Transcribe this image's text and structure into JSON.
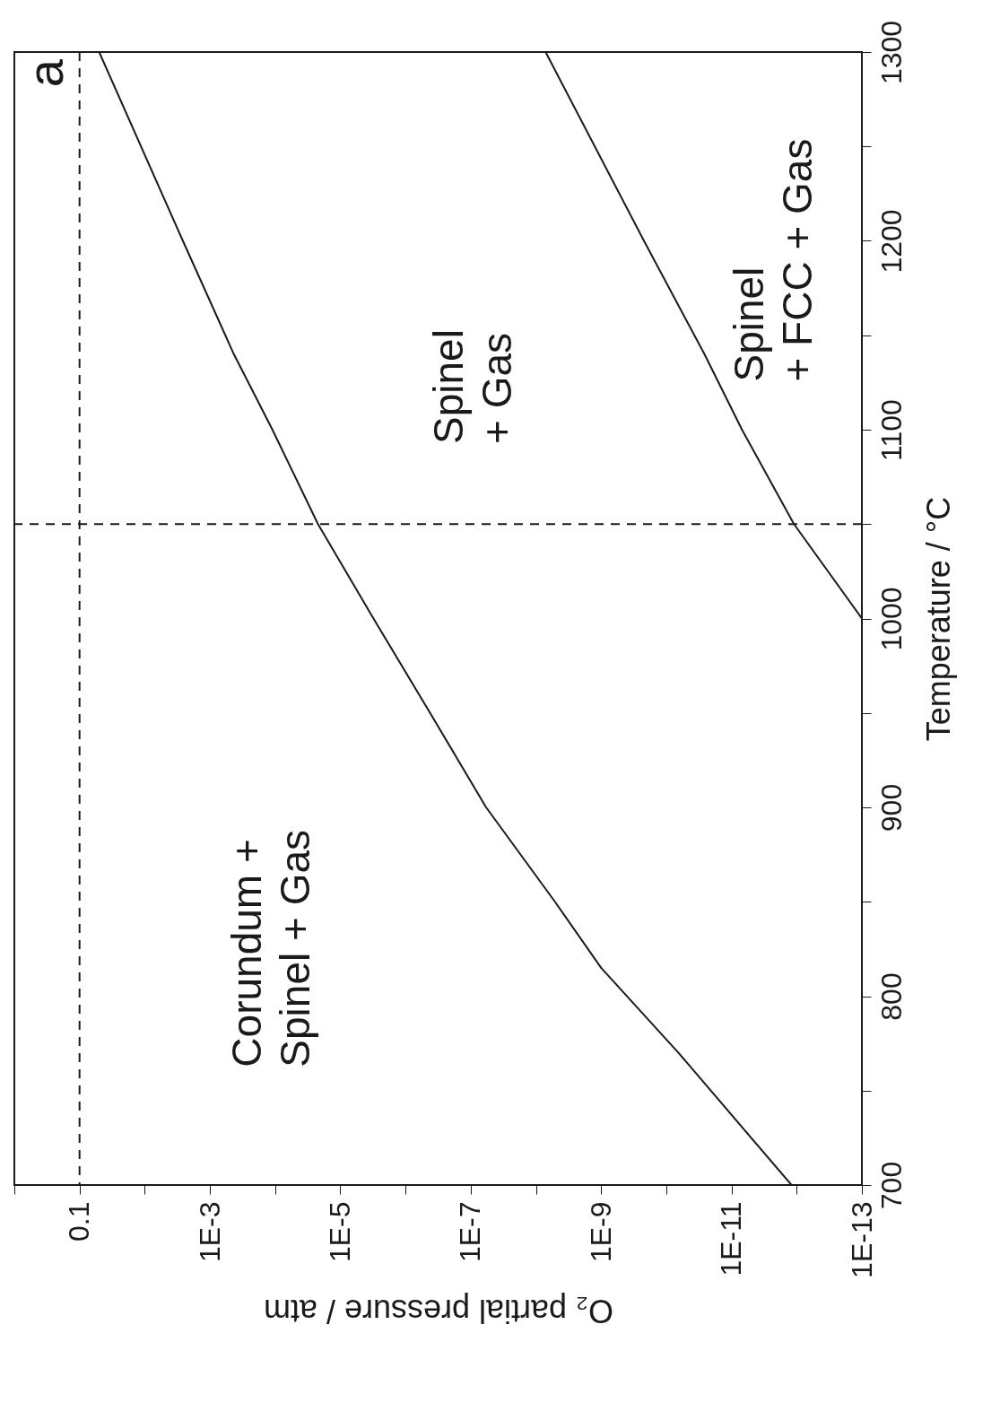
{
  "chart_data": {
    "type": "line",
    "xlabel": "O₂ partial pressure / atm",
    "ylabel": "Temperature / °C",
    "log": "x",
    "grid": false,
    "marker": "none",
    "line_style": "solid",
    "xlim": [
      1,
      1e-13
    ],
    "ylim": [
      700,
      1300
    ],
    "xticks": [
      {
        "value": 1,
        "label": null
      },
      0.1,
      {
        "value": 0.01,
        "label": null
      },
      {
        "value": 0.001,
        "label": "1E-3"
      },
      {
        "value": 0.0001,
        "label": null
      },
      {
        "value": 1e-05,
        "label": "1E-5"
      },
      {
        "value": 1e-06,
        "label": null
      },
      {
        "value": 1e-07,
        "label": "1E-7"
      },
      {
        "value": 1e-08,
        "label": null
      },
      {
        "value": 1e-09,
        "label": "1E-9"
      },
      {
        "value": 1e-10,
        "label": null
      },
      {
        "value": 1e-11,
        "label": "1E-11"
      },
      {
        "value": 1e-12,
        "label": null
      },
      {
        "value": 1e-13,
        "label": "1E-13"
      }
    ],
    "yticks": [
      700,
      {
        "value": 750,
        "label": null
      },
      800,
      {
        "value": 850,
        "label": null
      },
      900,
      {
        "value": 950,
        "label": null
      },
      1000,
      {
        "value": 1050,
        "label": null
      },
      1100,
      {
        "value": 1150,
        "label": null
      },
      1200,
      {
        "value": 1250,
        "label": null
      },
      1300
    ],
    "series": [
      {
        "color": "#1a1a1a",
        "x": [
          1.2e-12,
          6.5e-11,
          1e-09,
          5.1e-09,
          5.8e-08,
          4.2e-07,
          3.1e-06,
          2.2e-05,
          0.00011,
          0.00043,
          0.0026,
          0.05
        ],
        "values": [
          700,
          770,
          815,
          850,
          900,
          950,
          1000,
          1050,
          1100,
          1140,
          1200,
          1300
        ]
      },
      {
        "color": "#1a1a1a",
        "x": [
          1e-13,
          1.1e-12,
          6.9e-12,
          2.6e-11,
          2.2e-10,
          7.1e-09
        ],
        "values": [
          1000,
          1050,
          1100,
          1140,
          1200,
          1300
        ]
      }
    ],
    "ref_lines": [
      {
        "axis": "y",
        "value": 1050,
        "color": "#1a1a1a",
        "line_style": "dashed"
      },
      {
        "axis": "x",
        "value": 0.1,
        "color": "#1a1a1a",
        "line_style": "dashed"
      }
    ],
    "annotations": [
      "Corundum +\nSpinel + Gas",
      "Spinel\n+ Gas",
      "Spinel\n+ FCC + Gas",
      "a"
    ]
  }
}
